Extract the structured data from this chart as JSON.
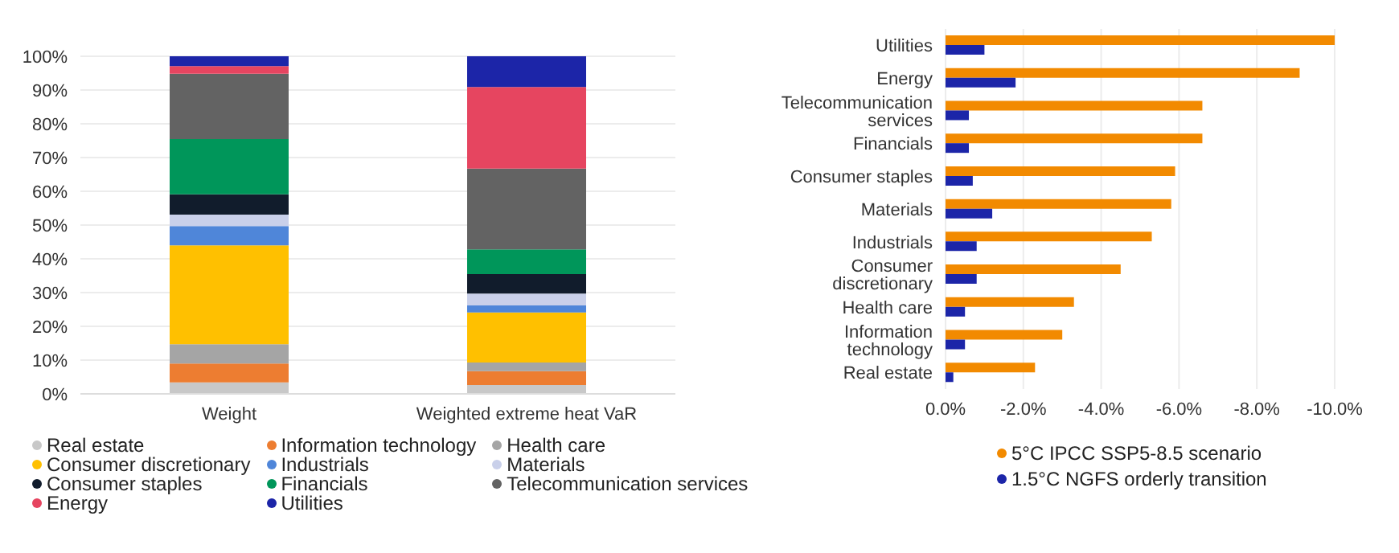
{
  "chart_data": [
    {
      "type": "bar",
      "stacked": true,
      "categories": [
        "Weight",
        "Weighted extreme heat VaR"
      ],
      "ylim": [
        0,
        100
      ],
      "yticks": [
        {
          "value": 0,
          "label": "0%"
        },
        {
          "value": 10,
          "label": "10%"
        },
        {
          "value": 20,
          "label": "20%"
        },
        {
          "value": 30,
          "label": "30%"
        },
        {
          "value": 40,
          "label": "40%"
        },
        {
          "value": 50,
          "label": "50%"
        },
        {
          "value": 60,
          "label": "60%"
        },
        {
          "value": 70,
          "label": "70%"
        },
        {
          "value": 80,
          "label": "80%"
        },
        {
          "value": 90,
          "label": "90%"
        },
        {
          "value": 100,
          "label": "100%"
        }
      ],
      "grid": "y",
      "legend": "bottom",
      "series": [
        {
          "name": "Real estate",
          "color": "#c8c8c8",
          "values": [
            3.4,
            2.6
          ]
        },
        {
          "name": "Information technology",
          "color": "#ed7d31",
          "values": [
            5.6,
            4.1
          ]
        },
        {
          "name": "Health care",
          "color": "#a5a5a5",
          "values": [
            5.7,
            2.6
          ]
        },
        {
          "name": "Consumer discretionary",
          "color": "#ffc000",
          "values": [
            29.3,
            14.8
          ]
        },
        {
          "name": "Industrials",
          "color": "#4f86d9",
          "values": [
            5.7,
            2.1
          ]
        },
        {
          "name": "Materials",
          "color": "#c9d0ea",
          "values": [
            3.4,
            3.5
          ]
        },
        {
          "name": "Consumer staples",
          "color": "#111c2c",
          "values": [
            6.0,
            5.8
          ]
        },
        {
          "name": "Financials",
          "color": "#00965a",
          "values": [
            16.4,
            7.3
          ]
        },
        {
          "name": "Telecommunication services",
          "color": "#636363",
          "values": [
            19.3,
            23.9
          ]
        },
        {
          "name": "Energy",
          "color": "#e64560",
          "values": [
            2.3,
            24.2
          ]
        },
        {
          "name": "Utilities",
          "color": "#1c25a8",
          "values": [
            2.9,
            9.1
          ]
        }
      ]
    },
    {
      "type": "bar",
      "orientation": "horizontal",
      "categories": [
        "Utilities",
        "Energy",
        "Telecommunication services",
        "Financials",
        "Consumer staples",
        "Materials",
        "Industrials",
        "Consumer discretionary",
        "Health care",
        "Information technology",
        "Real estate"
      ],
      "xlim": [
        0,
        -10
      ],
      "xticks": [
        {
          "value": 0,
          "label": "0.0%"
        },
        {
          "value": -2,
          "label": "-2.0%"
        },
        {
          "value": -4,
          "label": "-4.0%"
        },
        {
          "value": -6,
          "label": "-6.0%"
        },
        {
          "value": -8,
          "label": "-8.0%"
        },
        {
          "value": -10,
          "label": "-10.0%"
        }
      ],
      "grid": "x",
      "legend": "bottom",
      "series": [
        {
          "name": "5°C IPCC SSP5-8.5 scenario",
          "color": "#f28a00",
          "values": [
            -10.0,
            -9.1,
            -6.6,
            -6.6,
            -5.9,
            -5.8,
            -5.3,
            -4.5,
            -3.3,
            -3.0,
            -2.3
          ]
        },
        {
          "name": "1.5°C NGFS orderly transition",
          "color": "#1c25a8",
          "values": [
            -1.0,
            -1.8,
            -0.6,
            -0.6,
            -0.7,
            -1.2,
            -0.8,
            -0.8,
            -0.5,
            -0.5,
            -0.2
          ]
        }
      ]
    }
  ]
}
